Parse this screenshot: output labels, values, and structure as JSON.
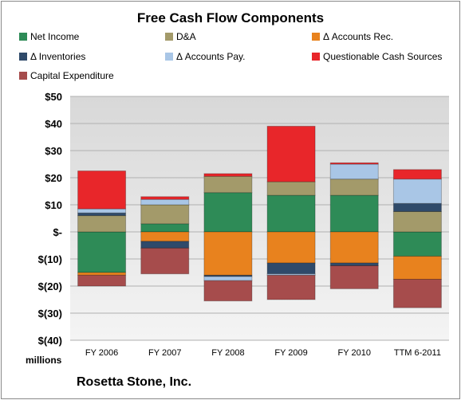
{
  "title": "Free Cash Flow Components",
  "units_label": "millions",
  "company": "Rosetta Stone, Inc.",
  "colors": {
    "plot_bg_top": "#d8d8d8",
    "plot_bg_bottom": "#f4f4f4",
    "gridline": "#b0b0b0"
  },
  "chart_data": {
    "type": "bar",
    "stacked": true,
    "title": "Free Cash Flow Components",
    "categories": [
      "FY 2006",
      "FY 2007",
      "FY 2008",
      "FY 2009",
      "FY 2010",
      "TTM 6-2011"
    ],
    "ylim": [
      -40,
      50
    ],
    "yticks": [
      50,
      40,
      30,
      20,
      10,
      0,
      -10,
      -20,
      -30,
      -40
    ],
    "ytick_labels": [
      "$50",
      "$40",
      "$30",
      "$20",
      "$10",
      "$-",
      "$(10)",
      "$(20)",
      "$(30)",
      "$(40)"
    ],
    "grid": true,
    "legend_position": "top",
    "series": [
      {
        "name": "Net Income",
        "color": "#2e8b57",
        "values": [
          -15,
          3,
          14.5,
          13.5,
          13.5,
          -9
        ]
      },
      {
        "name": "D&A",
        "color": "#a39a6a",
        "values": [
          6,
          7,
          6,
          5,
          6,
          7.5
        ]
      },
      {
        "name": "Δ Accounts Rec.",
        "color": "#e8821e",
        "values": [
          -1,
          -3.5,
          -16,
          -11.5,
          -11.5,
          -8.5
        ]
      },
      {
        "name": "Δ Inventories",
        "color": "#2f4a6a",
        "values": [
          1,
          -2.5,
          -0.5,
          -4,
          -1,
          3
        ]
      },
      {
        "name": "Δ Accounts Pay.",
        "color": "#a9c6e6",
        "values": [
          1.5,
          2,
          -1.5,
          -0.5,
          5.5,
          9
        ]
      },
      {
        "name": "Questionable Cash Sources",
        "color": "#e8262a",
        "values": [
          14,
          1,
          1,
          20.5,
          0.5,
          3.5
        ]
      },
      {
        "name": "Capital Expenditure",
        "color": "#a64c4c",
        "values": [
          -4,
          -9.5,
          -7.5,
          -9,
          -8.5,
          -10.5
        ]
      }
    ]
  }
}
